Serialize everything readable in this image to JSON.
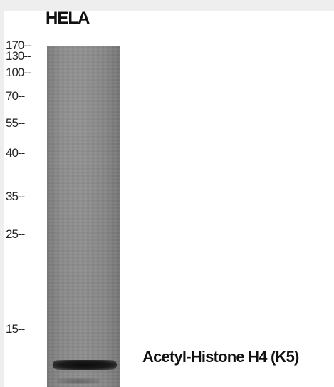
{
  "lane_label": "HELA",
  "markers": [
    {
      "label": "170--",
      "kda": 170
    },
    {
      "label": "130--",
      "kda": 130
    },
    {
      "label": "100--",
      "kda": 100
    },
    {
      "label": "70--",
      "kda": 70
    },
    {
      "label": "55--",
      "kda": 55
    },
    {
      "label": "40--",
      "kda": 40
    },
    {
      "label": "35--",
      "kda": 35
    },
    {
      "label": "25--",
      "kda": 25
    },
    {
      "label": "15--",
      "kda": 15
    }
  ],
  "target_label": "Acetyl-Histone H4 (K5)",
  "colors": {
    "background": "#eeeeee",
    "panel": "#ffffff",
    "band": "#111111"
  }
}
